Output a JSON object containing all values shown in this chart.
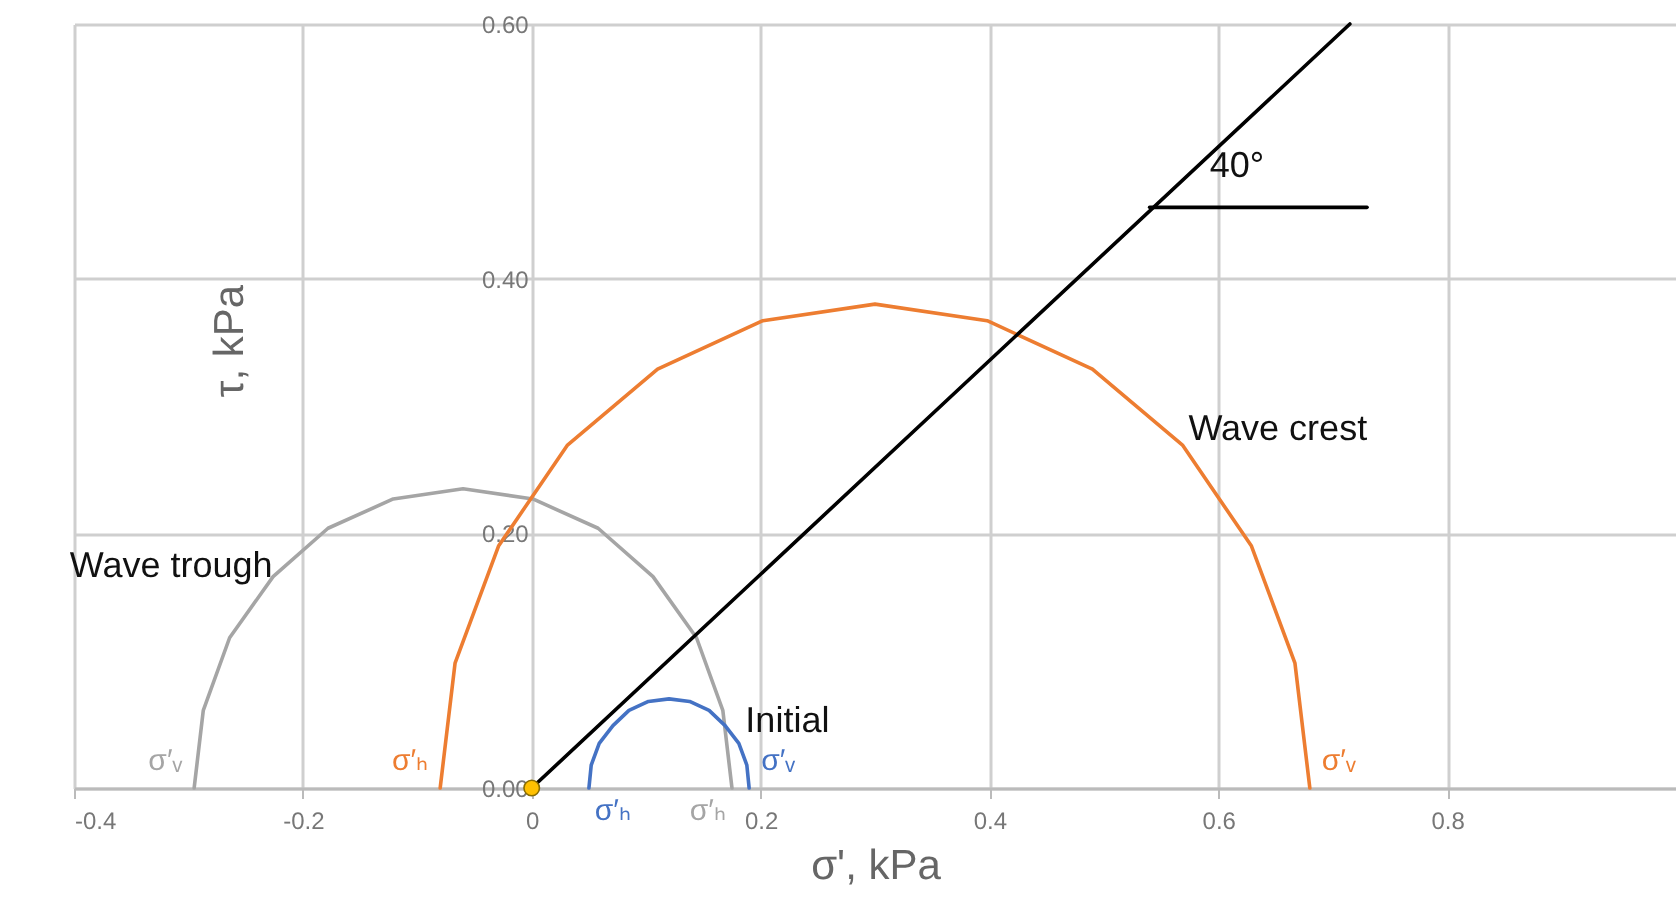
{
  "chart_data": {
    "type": "line",
    "xlabel": "σ', kPa",
    "ylabel": "τ, kPa",
    "xlim": [
      -0.4,
      1.0
    ],
    "xticks": [
      -0.4,
      -0.2,
      0,
      0.2,
      0.4,
      0.6,
      0.8
    ],
    "ylim": [
      0,
      0.6
    ],
    "yticks": [
      {
        "value": 0,
        "label": "0.00"
      },
      {
        "value": 0.2,
        "label": "0.20"
      },
      {
        "value": 0.4,
        "label": "0.40"
      },
      {
        "value": 0.6,
        "label": "0.60"
      }
    ],
    "grid": true,
    "series": [
      {
        "name": "Wave trough",
        "color": "#a5a5a5",
        "x": [
          -0.295,
          -0.287,
          -0.264,
          -0.226,
          -0.178,
          -0.121,
          -0.06,
          0.001,
          0.058,
          0.106,
          0.144,
          0.167,
          0.175
        ],
        "values": [
          0,
          0.061,
          0.118,
          0.166,
          0.204,
          0.227,
          0.235,
          0.227,
          0.204,
          0.166,
          0.118,
          0.061,
          0
        ]
      },
      {
        "name": "Wave crest",
        "color": "#ed7d31",
        "x": [
          -0.08,
          -0.067,
          -0.029,
          0.031,
          0.11,
          0.202,
          0.3,
          0.398,
          0.49,
          0.569,
          0.629,
          0.667,
          0.68
        ],
        "values": [
          0,
          0.098,
          0.19,
          0.269,
          0.329,
          0.367,
          0.38,
          0.367,
          0.329,
          0.269,
          0.19,
          0.098,
          0
        ]
      },
      {
        "name": "Initial",
        "color": "#4472c4",
        "x": [
          0.05,
          0.052,
          0.059,
          0.071,
          0.085,
          0.102,
          0.12,
          0.138,
          0.155,
          0.169,
          0.181,
          0.188,
          0.19
        ],
        "values": [
          0,
          0.018,
          0.035,
          0.049,
          0.061,
          0.068,
          0.07,
          0.068,
          0.061,
          0.049,
          0.035,
          0.018,
          0
        ]
      },
      {
        "color": "#000000",
        "x": [
          0,
          0.715
        ],
        "values": [
          0,
          0.6
        ]
      },
      {
        "color": "#000000",
        "x": [
          0.54,
          0.73
        ],
        "values": [
          0.456,
          0.456
        ]
      },
      {
        "type": "scatter",
        "marker": "circle",
        "color": "#ffc000",
        "x": [
          0
        ],
        "values": [
          0
        ]
      }
    ],
    "annotations": [
      {
        "text": "40°",
        "x": 0.54,
        "y": 0.456
      },
      {
        "text": "σ′ᵥ",
        "x": -0.295,
        "y": 0
      },
      {
        "text": "σ′ₕ",
        "x": -0.08,
        "y": 0
      },
      {
        "text": "σ′ₕ",
        "x": 0.05,
        "y": 0
      },
      {
        "text": "σ′ᵥ",
        "x": 0.19,
        "y": 0
      },
      {
        "text": "σ′ₕ",
        "x": 0.175,
        "y": 0
      },
      {
        "text": "σ′ᵥ",
        "x": 0.68,
        "y": 0
      }
    ]
  }
}
